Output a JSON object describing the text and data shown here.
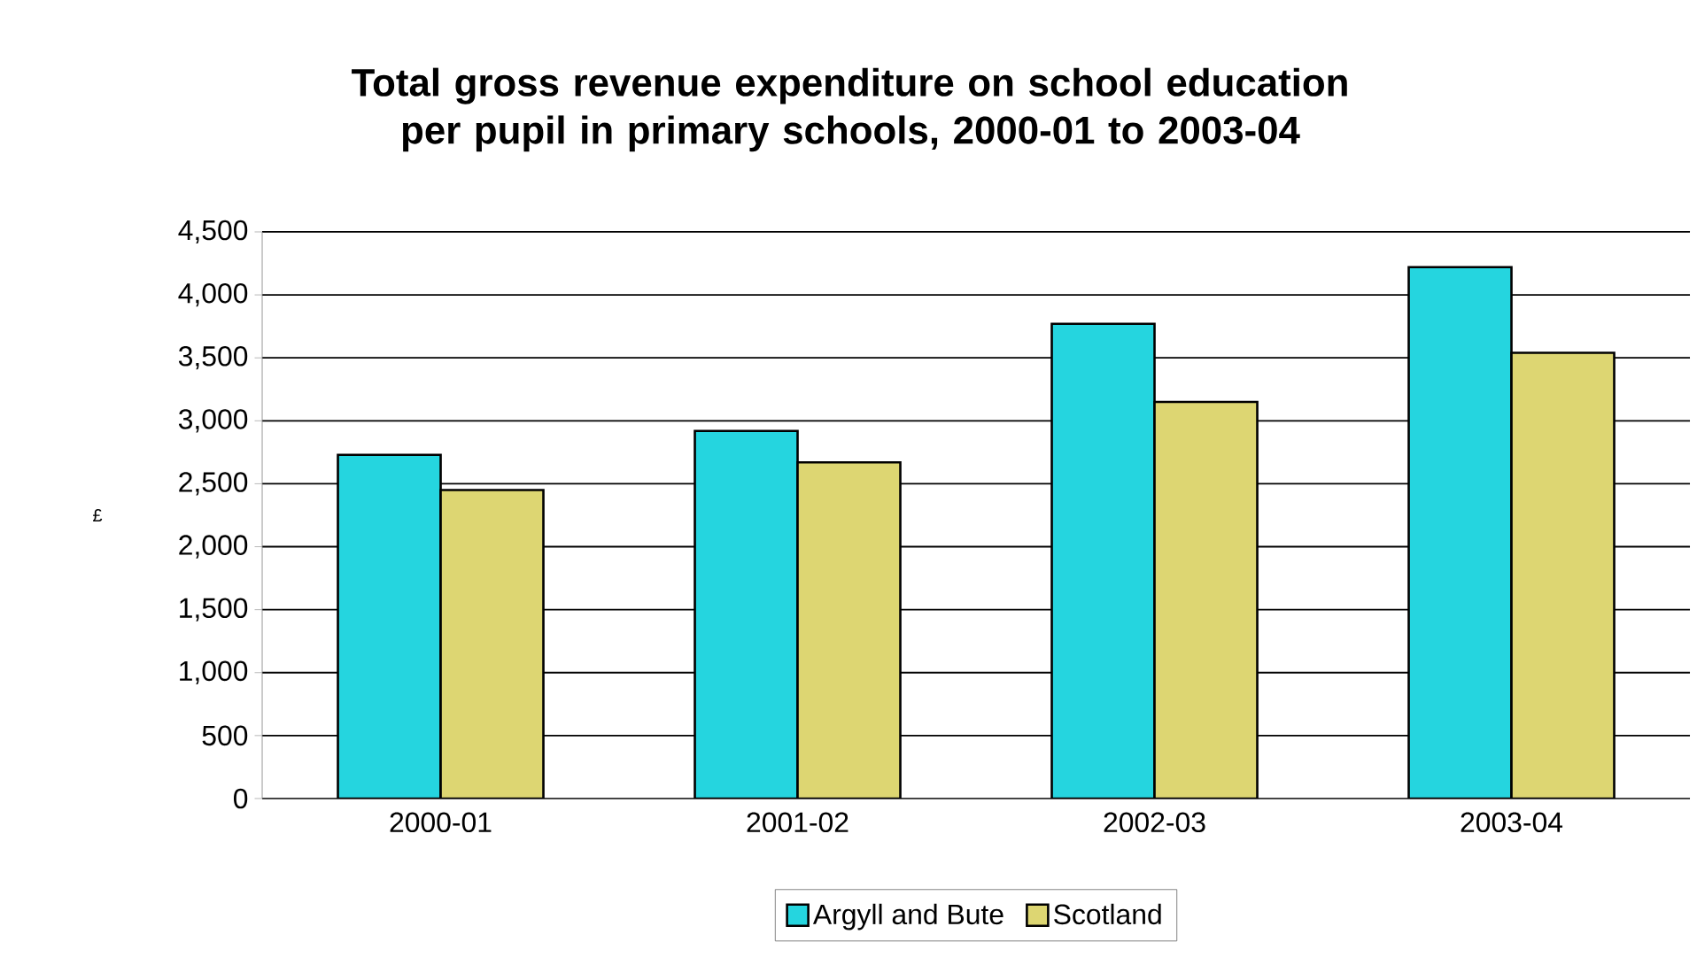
{
  "chart_data": {
    "type": "bar",
    "title": "Total gross revenue expenditure on school education per pupil in primary schools, 2000-01 to 2003-04",
    "ylabel": "£",
    "categories": [
      "2000-01",
      "2001-02",
      "2002-03",
      "2003-04"
    ],
    "series": [
      {
        "name": "Argyll and Bute",
        "color": "#25d5df",
        "values": [
          2730,
          2920,
          3770,
          4220
        ]
      },
      {
        "name": "Scotland",
        "color": "#ddd672",
        "values": [
          2450,
          2670,
          3150,
          3540
        ]
      }
    ],
    "ylim": [
      0,
      4500
    ],
    "yticks": [
      {
        "value": 0,
        "label": "0"
      },
      {
        "value": 500,
        "label": "500"
      },
      {
        "value": 1000,
        "label": "1,000"
      },
      {
        "value": 1500,
        "label": "1,500"
      },
      {
        "value": 2000,
        "label": "2,000"
      },
      {
        "value": 2500,
        "label": "2,500"
      },
      {
        "value": 3000,
        "label": "3,000"
      },
      {
        "value": 3500,
        "label": "3,500"
      },
      {
        "value": 4000,
        "label": "4,000"
      },
      {
        "value": 4500,
        "label": "4,500"
      }
    ],
    "grid": "y",
    "legend": "bottom"
  }
}
